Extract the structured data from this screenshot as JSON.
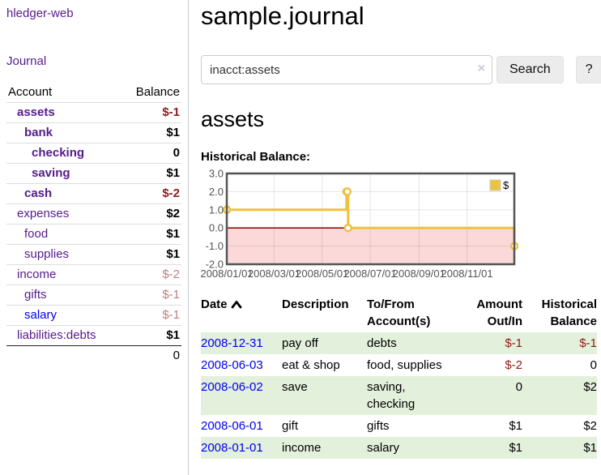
{
  "app": {
    "brand": "hledger-web",
    "nav_journal": "Journal"
  },
  "colors": {
    "link_purple": "#551a8b",
    "link_blue": "#0000ee",
    "negative_dark": "#8f1a1a",
    "negative_light": "#bf7d7d",
    "row_stripe_green": "#e3f0db",
    "chart_line": "#edc240",
    "chart_negative_fill": "#fbd9d9",
    "chart_zero_line": "#8b0000",
    "chart_border": "#545454",
    "chart_tick_text": "#545454"
  },
  "sidebar": {
    "headers": {
      "account": "Account",
      "balance": "Balance"
    },
    "accounts": [
      {
        "name": "assets",
        "depth": 1,
        "bold": true,
        "balance": "$-1",
        "neg": "dark",
        "link": "purple"
      },
      {
        "name": "bank",
        "depth": 2,
        "bold": true,
        "balance": "$1",
        "neg": "none",
        "link": "purple"
      },
      {
        "name": "checking",
        "depth": 3,
        "bold": true,
        "balance": "0",
        "neg": "none",
        "link": "purple"
      },
      {
        "name": "saving",
        "depth": 3,
        "bold": true,
        "balance": "$1",
        "neg": "none",
        "link": "purple"
      },
      {
        "name": "cash",
        "depth": 2,
        "bold": true,
        "balance": "$-2",
        "neg": "dark",
        "link": "purple"
      },
      {
        "name": "expenses",
        "depth": 1,
        "bold": false,
        "balance": "$2",
        "neg": "none",
        "link": "purple"
      },
      {
        "name": "food",
        "depth": 2,
        "bold": false,
        "balance": "$1",
        "neg": "none",
        "link": "purple"
      },
      {
        "name": "supplies",
        "depth": 2,
        "bold": false,
        "balance": "$1",
        "neg": "none",
        "link": "purple"
      },
      {
        "name": "income",
        "depth": 1,
        "bold": false,
        "balance": "$-2",
        "neg": "light",
        "link": "purple"
      },
      {
        "name": "gifts",
        "depth": 2,
        "bold": false,
        "balance": "$-1",
        "neg": "light",
        "link": "purple"
      },
      {
        "name": "salary",
        "depth": 2,
        "bold": false,
        "balance": "$-1",
        "neg": "light",
        "link": "blue"
      },
      {
        "name": "liabilities:debts",
        "depth": 1,
        "bold": false,
        "balance": "$1",
        "neg": "none",
        "link": "purple"
      }
    ],
    "total": "0"
  },
  "header": {
    "title": "sample.journal"
  },
  "search": {
    "value": "inacct:assets",
    "clear_icon": "×",
    "button": "Search",
    "help_button": "?"
  },
  "account_page": {
    "heading": "assets",
    "chart_label": "Historical Balance:"
  },
  "chart_data": {
    "type": "line",
    "steps": true,
    "title": "Historical Balance",
    "series": [
      {
        "name": "$",
        "points": [
          [
            "2008-01-01",
            1
          ],
          [
            "2008-06-01",
            2
          ],
          [
            "2008-06-02",
            2
          ],
          [
            "2008-06-03",
            0
          ],
          [
            "2008-12-31",
            -1
          ]
        ]
      }
    ],
    "x_range": [
      "2008-01-01",
      "2008-12-31"
    ],
    "x_tick_labels": [
      "2008/01/01",
      "2008/03/01",
      "2008/05/01",
      "2008/07/01",
      "2008/09/01",
      "2008/11/01"
    ],
    "y_tick_labels": [
      "3.0",
      "2.0",
      "1.0",
      "0.0",
      "-1.0",
      "-2.0"
    ],
    "y_ticks": [
      3,
      2,
      1,
      0,
      -1,
      -2
    ],
    "ylim": [
      -2,
      3
    ],
    "grid": true,
    "legend_position": "top-right",
    "legend_label": "$"
  },
  "register": {
    "columns": [
      {
        "line1": "Date",
        "line2": "",
        "align": "left",
        "sortable": true
      },
      {
        "line1": "Description",
        "line2": "",
        "align": "left",
        "sortable": false
      },
      {
        "line1": "To/From",
        "line2": "Account(s)",
        "align": "left",
        "sortable": false
      },
      {
        "line1": "Amount",
        "line2": "Out/In",
        "align": "right",
        "sortable": false
      },
      {
        "line1": "Historical",
        "line2": "Balance",
        "align": "right",
        "sortable": false
      }
    ],
    "rows": [
      {
        "date": "2008-12-31",
        "description": "pay off",
        "accounts": "debts",
        "amount": "$-1",
        "amount_neg": true,
        "balance": "$-1",
        "balance_neg": true
      },
      {
        "date": "2008-06-03",
        "description": "eat & shop",
        "accounts": "food, supplies",
        "amount": "$-2",
        "amount_neg": true,
        "balance": "0",
        "balance_neg": false
      },
      {
        "date": "2008-06-02",
        "description": "save",
        "accounts": "saving, checking",
        "amount": "0",
        "amount_neg": false,
        "balance": "$2",
        "balance_neg": false
      },
      {
        "date": "2008-06-01",
        "description": "gift",
        "accounts": "gifts",
        "amount": "$1",
        "amount_neg": false,
        "balance": "$2",
        "balance_neg": false
      },
      {
        "date": "2008-01-01",
        "description": "income",
        "accounts": "salary",
        "amount": "$1",
        "amount_neg": false,
        "balance": "$1",
        "balance_neg": false
      }
    ]
  }
}
